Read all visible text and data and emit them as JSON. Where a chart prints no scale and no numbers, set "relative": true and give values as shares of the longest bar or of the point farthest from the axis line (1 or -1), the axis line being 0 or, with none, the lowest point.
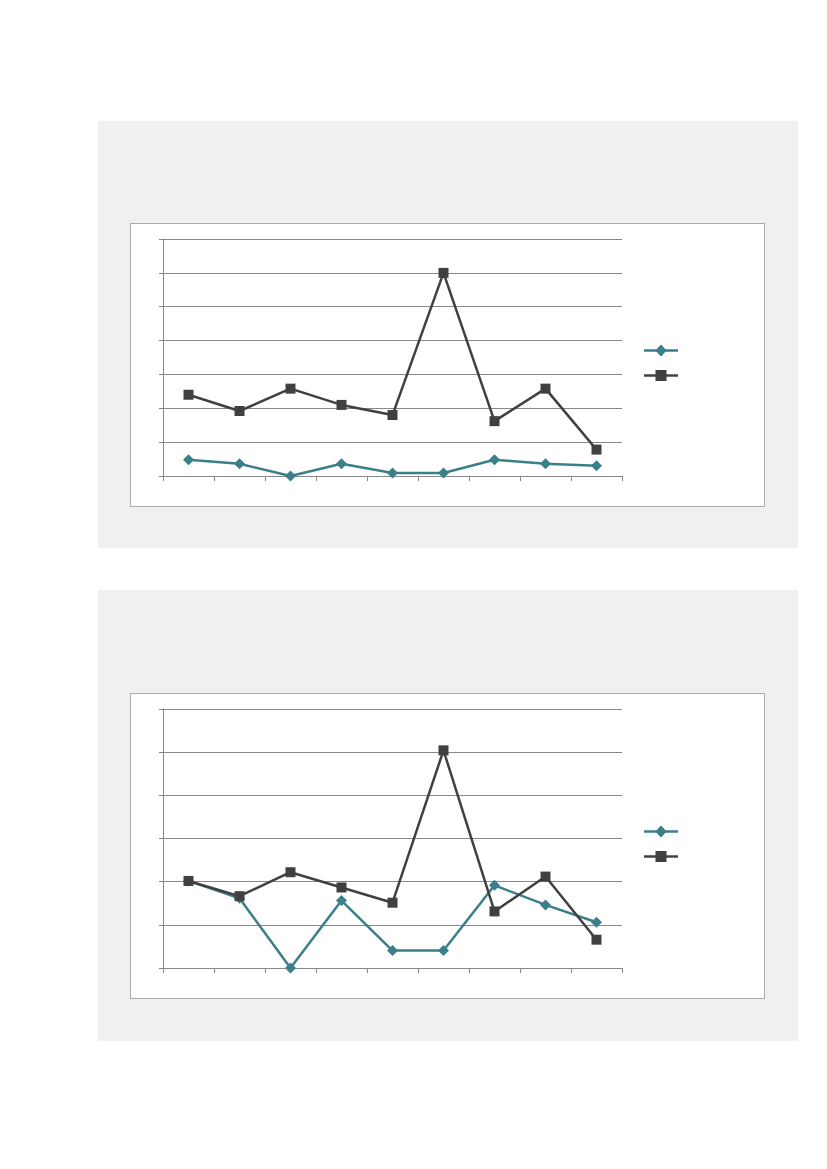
{
  "chart_data": [
    {
      "type": "line",
      "relative": true,
      "categories": [
        null,
        null,
        null,
        null,
        null,
        null,
        null,
        null,
        null
      ],
      "grid": "y",
      "series": [
        {
          "color": "#3a7f8a",
          "marker": "diamond",
          "values": [
            0.08,
            0.06,
            0,
            0.06,
            0.015,
            0.015,
            0.08,
            0.06,
            0.05
          ]
        },
        {
          "color": "#404040",
          "marker": "square",
          "values": [
            0.4,
            0.32,
            0.43,
            0.35,
            0.3,
            1,
            0.27,
            0.43,
            0.13
          ]
        }
      ]
    },
    {
      "type": "line",
      "relative": true,
      "categories": [
        null,
        null,
        null,
        null,
        null,
        null,
        null,
        null,
        null
      ],
      "grid": "y",
      "series": [
        {
          "color": "#3a7f8a",
          "marker": "diamond",
          "values": [
            0.4,
            0.32,
            0,
            0.31,
            0.08,
            0.08,
            0.38,
            0.29,
            0.21
          ]
        },
        {
          "color": "#404040",
          "marker": "square",
          "values": [
            0.4,
            0.33,
            0.44,
            0.37,
            0.3,
            1,
            0.26,
            0.42,
            0.13
          ]
        }
      ]
    }
  ]
}
